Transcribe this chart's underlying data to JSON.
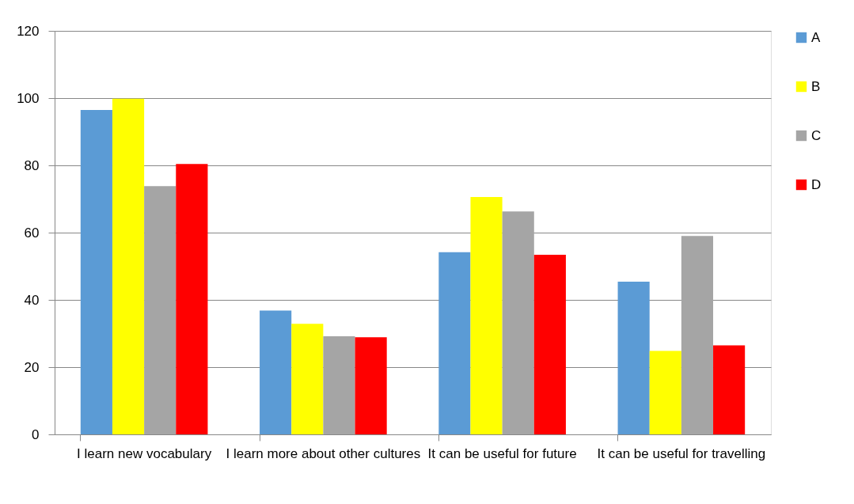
{
  "chart_data": {
    "type": "bar",
    "categories": [
      "I learn new vocabulary",
      "I learn more about other cultures",
      "It can be useful for future",
      "It can be useful for travelling"
    ],
    "series": [
      {
        "name": "A",
        "color": "#5b9bd5",
        "values": [
          96.5,
          36.8,
          54.2,
          45.4
        ]
      },
      {
        "name": "B",
        "color": "#ffff00",
        "values": [
          99.8,
          32.9,
          70.6,
          24.8
        ]
      },
      {
        "name": "C",
        "color": "#a5a5a5",
        "values": [
          73.8,
          29.2,
          66.3,
          59.0
        ]
      },
      {
        "name": "D",
        "color": "#ff0000",
        "values": [
          80.4,
          28.9,
          53.4,
          26.5
        ]
      }
    ],
    "ylim": [
      0,
      120
    ],
    "yticks": [
      0,
      20,
      40,
      60,
      80,
      100,
      120
    ],
    "grid": "y",
    "legend": "right"
  }
}
